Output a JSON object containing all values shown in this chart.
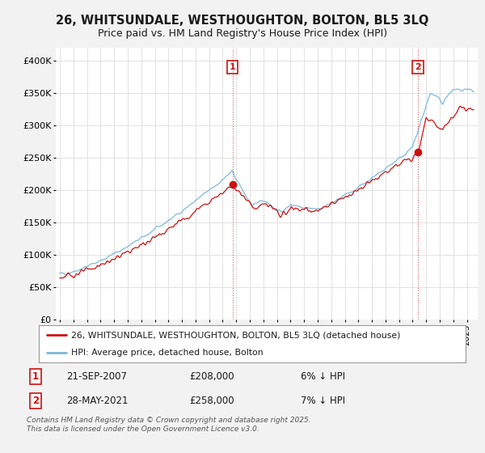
{
  "title": "26, WHITSUNDALE, WESTHOUGHTON, BOLTON, BL5 3LQ",
  "subtitle": "Price paid vs. HM Land Registry's House Price Index (HPI)",
  "ylim": [
    0,
    420000
  ],
  "yticks": [
    0,
    50000,
    100000,
    150000,
    200000,
    250000,
    300000,
    350000,
    400000
  ],
  "ytick_labels": [
    "£0",
    "£50K",
    "£100K",
    "£150K",
    "£200K",
    "£250K",
    "£300K",
    "£350K",
    "£400K"
  ],
  "background_color": "#f2f2f2",
  "plot_bg_color": "#ffffff",
  "grid_color": "#dddddd",
  "hpi_line_color": "#7ab8d9",
  "price_line_color": "#cc1111",
  "sale1_date": "21-SEP-2007",
  "sale1_price": 208000,
  "sale1_pct": "6% ↓ HPI",
  "sale1_year": 2007.72,
  "sale2_date": "28-MAY-2021",
  "sale2_price": 258000,
  "sale2_pct": "7% ↓ HPI",
  "sale2_year": 2021.4,
  "legend_label1": "26, WHITSUNDALE, WESTHOUGHTON, BOLTON, BL5 3LQ (detached house)",
  "legend_label2": "HPI: Average price, detached house, Bolton",
  "footnote": "Contains HM Land Registry data © Crown copyright and database right 2025.\nThis data is licensed under the Open Government Licence v3.0.",
  "title_fontsize": 10.5,
  "subtitle_fontsize": 9
}
